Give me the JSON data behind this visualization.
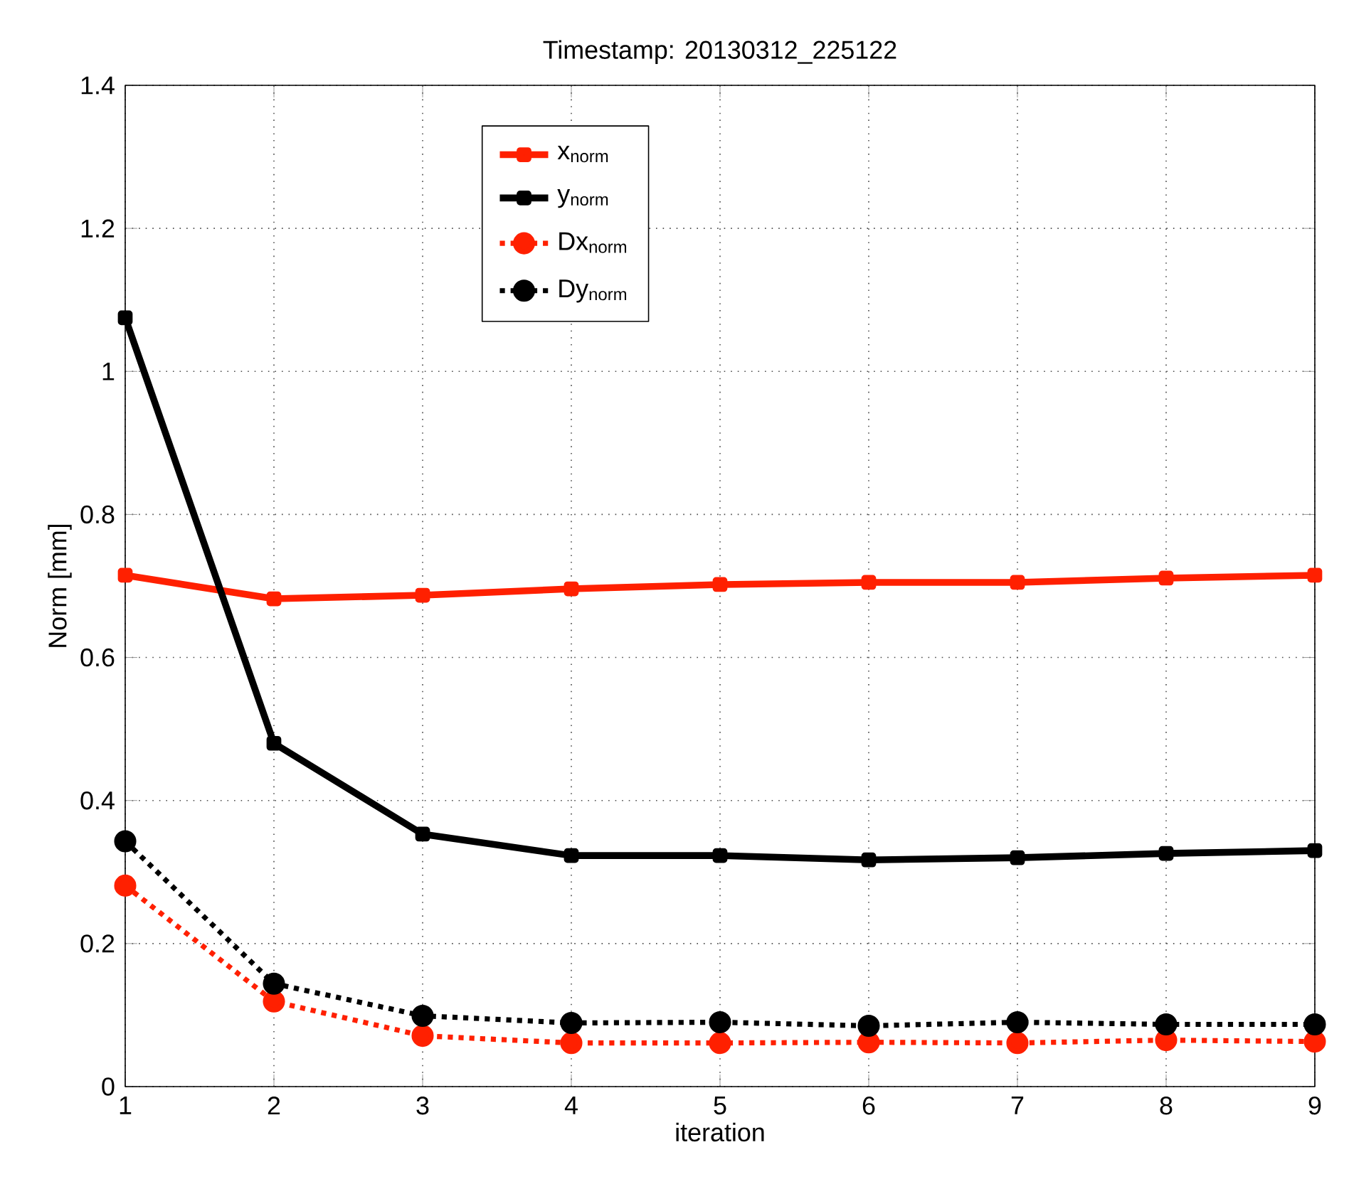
{
  "chart_data": {
    "type": "line",
    "title": "Timestamp: 20130312_225122",
    "xlabel": "iteration",
    "ylabel": "Norm [mm]",
    "x": [
      1,
      2,
      3,
      4,
      5,
      6,
      7,
      8,
      9
    ],
    "xlim": [
      1,
      9
    ],
    "xticks": [
      1,
      2,
      3,
      4,
      5,
      6,
      7,
      8,
      9
    ],
    "ylim": [
      0,
      1.4
    ],
    "yticks": [
      0,
      0.2,
      0.4,
      0.6,
      0.8,
      1,
      1.2,
      1.4
    ],
    "grid": true,
    "legend": "top",
    "series": [
      {
        "name": "x$_{norm}$",
        "color": "#ff2000",
        "marker": "square",
        "line_style": "solid",
        "values": [
          0.715,
          0.682,
          0.687,
          0.696,
          0.702,
          0.705,
          0.705,
          0.711,
          0.715
        ]
      },
      {
        "name": "y$_{norm}$",
        "color": "#000000",
        "marker": "square",
        "line_style": "solid",
        "values": [
          1.075,
          0.48,
          0.353,
          0.323,
          0.323,
          0.317,
          0.32,
          0.326,
          0.33
        ]
      },
      {
        "name": "Dx$_{norm}$",
        "color": "#ff2000",
        "marker": "circle",
        "line_style": "dotted",
        "values": [
          0.281,
          0.119,
          0.071,
          0.061,
          0.061,
          0.062,
          0.061,
          0.065,
          0.063
        ]
      },
      {
        "name": "Dy$_{norm}$",
        "color": "#000000",
        "marker": "circle",
        "line_style": "dotted",
        "values": [
          0.343,
          0.144,
          0.099,
          0.089,
          0.09,
          0.085,
          0.09,
          0.087,
          0.087
        ]
      }
    ]
  }
}
